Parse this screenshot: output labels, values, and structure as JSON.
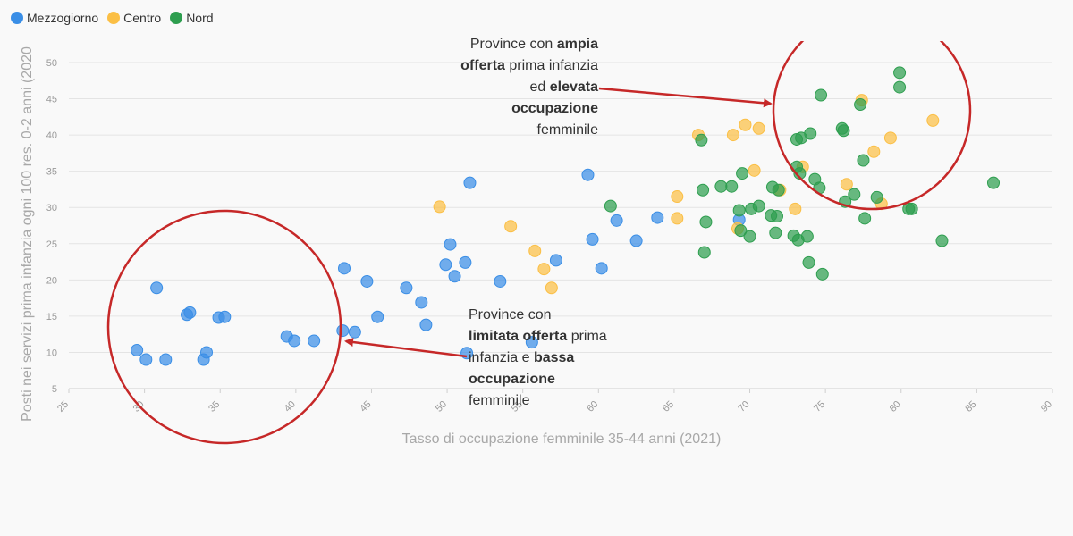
{
  "legend": [
    {
      "name": "Mezzogiorno",
      "color": "#3a8ee6"
    },
    {
      "name": "Centro",
      "color": "#fbbf45"
    },
    {
      "name": "Nord",
      "color": "#2e9e4f"
    }
  ],
  "annotations": {
    "top": [
      {
        "t": "Province con ",
        "b": false
      },
      {
        "t": "ampia",
        "b": true
      },
      {
        "t": "\n",
        "b": false
      },
      {
        "t": "offerta",
        "b": true
      },
      {
        "t": " prima infanzia",
        "b": false
      },
      {
        "t": "\n",
        "b": false
      },
      {
        "t": "ed ",
        "b": false
      },
      {
        "t": "elevata",
        "b": true
      },
      {
        "t": "\n",
        "b": false
      },
      {
        "t": "occupazione",
        "b": true
      },
      {
        "t": "\n",
        "b": false
      },
      {
        "t": "femminile",
        "b": false
      }
    ],
    "bottom": [
      {
        "t": "Province con",
        "b": false
      },
      {
        "t": "\n",
        "b": false
      },
      {
        "t": "limitata offerta",
        "b": true
      },
      {
        "t": " prima",
        "b": false
      },
      {
        "t": "\n",
        "b": false
      },
      {
        "t": "infanzia e ",
        "b": false
      },
      {
        "t": "bassa",
        "b": true
      },
      {
        "t": "\n",
        "b": false
      },
      {
        "t": "occupazione",
        "b": true
      },
      {
        "t": "\n",
        "b": false
      },
      {
        "t": "femminile",
        "b": false
      }
    ]
  },
  "colors": {
    "annotation": "#c62828",
    "grid": "#e4e4e4"
  },
  "chart_data": {
    "type": "scatter",
    "xlabel": "Tasso di occupazione femminile 35-44 anni (2021)",
    "ylabel": "Posti nei servizi prima infanzia ogni 100 res. 0-2 anni (2020",
    "xlim": [
      25,
      90
    ],
    "ylim": [
      5,
      50
    ],
    "xticks": [
      25,
      30,
      35,
      40,
      45,
      50,
      55,
      60,
      65,
      70,
      75,
      80,
      85,
      90
    ],
    "yticks": [
      5,
      10,
      15,
      20,
      25,
      30,
      35,
      40,
      45,
      50
    ],
    "grid": true,
    "legend_position": "top-left",
    "series": [
      {
        "name": "Mezzogiorno",
        "color": "#3a8ee6",
        "points": [
          [
            29.5,
            10.3
          ],
          [
            30.1,
            9.0
          ],
          [
            30.8,
            18.9
          ],
          [
            31.4,
            9.0
          ],
          [
            32.8,
            15.2
          ],
          [
            33.0,
            15.5
          ],
          [
            33.9,
            9.0
          ],
          [
            34.1,
            10.0
          ],
          [
            34.9,
            14.8
          ],
          [
            35.3,
            14.9
          ],
          [
            39.4,
            12.2
          ],
          [
            39.9,
            11.6
          ],
          [
            41.2,
            11.6
          ],
          [
            43.1,
            13.0
          ],
          [
            43.2,
            21.6
          ],
          [
            43.9,
            12.8
          ],
          [
            44.7,
            19.8
          ],
          [
            45.4,
            14.9
          ],
          [
            47.3,
            18.9
          ],
          [
            48.3,
            16.9
          ],
          [
            48.6,
            13.8
          ],
          [
            49.9,
            22.1
          ],
          [
            50.2,
            24.9
          ],
          [
            50.5,
            20.5
          ],
          [
            51.2,
            22.4
          ],
          [
            51.3,
            9.9
          ],
          [
            51.5,
            33.4
          ],
          [
            53.5,
            19.8
          ],
          [
            55.6,
            11.4
          ],
          [
            57.2,
            22.7
          ],
          [
            59.3,
            34.5
          ],
          [
            59.6,
            25.6
          ],
          [
            60.2,
            21.6
          ],
          [
            61.2,
            28.2
          ],
          [
            62.5,
            25.4
          ],
          [
            63.9,
            28.6
          ],
          [
            69.3,
            28.3
          ]
        ]
      },
      {
        "name": "Centro",
        "color": "#fbbf45",
        "points": [
          [
            49.5,
            30.1
          ],
          [
            54.2,
            27.4
          ],
          [
            55.8,
            24.0
          ],
          [
            56.4,
            21.5
          ],
          [
            56.9,
            18.9
          ],
          [
            65.2,
            31.5
          ],
          [
            65.2,
            28.5
          ],
          [
            66.6,
            40.0
          ],
          [
            68.9,
            40.0
          ],
          [
            69.2,
            27.1
          ],
          [
            69.7,
            41.4
          ],
          [
            70.3,
            35.1
          ],
          [
            70.6,
            40.9
          ],
          [
            72.0,
            32.4
          ],
          [
            73.0,
            29.8
          ],
          [
            73.5,
            35.6
          ],
          [
            76.4,
            33.2
          ],
          [
            77.4,
            44.8
          ],
          [
            78.2,
            37.7
          ],
          [
            78.7,
            30.5
          ],
          [
            79.3,
            39.6
          ],
          [
            82.1,
            42.0
          ]
        ]
      },
      {
        "name": "Nord",
        "color": "#2e9e4f",
        "points": [
          [
            60.8,
            30.2
          ],
          [
            66.8,
            39.3
          ],
          [
            66.9,
            32.4
          ],
          [
            67.0,
            23.8
          ],
          [
            67.1,
            28.0
          ],
          [
            68.1,
            32.9
          ],
          [
            68.8,
            32.9
          ],
          [
            69.3,
            29.6
          ],
          [
            69.4,
            26.8
          ],
          [
            69.5,
            34.7
          ],
          [
            70.0,
            26.0
          ],
          [
            70.1,
            29.8
          ],
          [
            70.6,
            30.2
          ],
          [
            71.4,
            28.9
          ],
          [
            71.5,
            32.8
          ],
          [
            71.7,
            26.5
          ],
          [
            71.8,
            28.8
          ],
          [
            71.9,
            32.4
          ],
          [
            72.9,
            26.1
          ],
          [
            73.1,
            35.6
          ],
          [
            73.1,
            39.4
          ],
          [
            73.2,
            25.5
          ],
          [
            73.3,
            34.7
          ],
          [
            73.4,
            39.6
          ],
          [
            73.8,
            26.0
          ],
          [
            73.9,
            22.4
          ],
          [
            74.0,
            40.2
          ],
          [
            74.3,
            33.9
          ],
          [
            74.6,
            32.7
          ],
          [
            74.7,
            45.5
          ],
          [
            74.8,
            20.8
          ],
          [
            76.1,
            40.9
          ],
          [
            76.2,
            40.6
          ],
          [
            76.3,
            30.8
          ],
          [
            76.9,
            31.8
          ],
          [
            77.3,
            44.2
          ],
          [
            77.5,
            36.5
          ],
          [
            77.6,
            28.5
          ],
          [
            78.4,
            31.4
          ],
          [
            79.9,
            48.6
          ],
          [
            79.9,
            46.6
          ],
          [
            80.5,
            29.8
          ],
          [
            80.7,
            29.8
          ],
          [
            82.7,
            25.4
          ],
          [
            86.1,
            33.4
          ]
        ]
      }
    ]
  }
}
